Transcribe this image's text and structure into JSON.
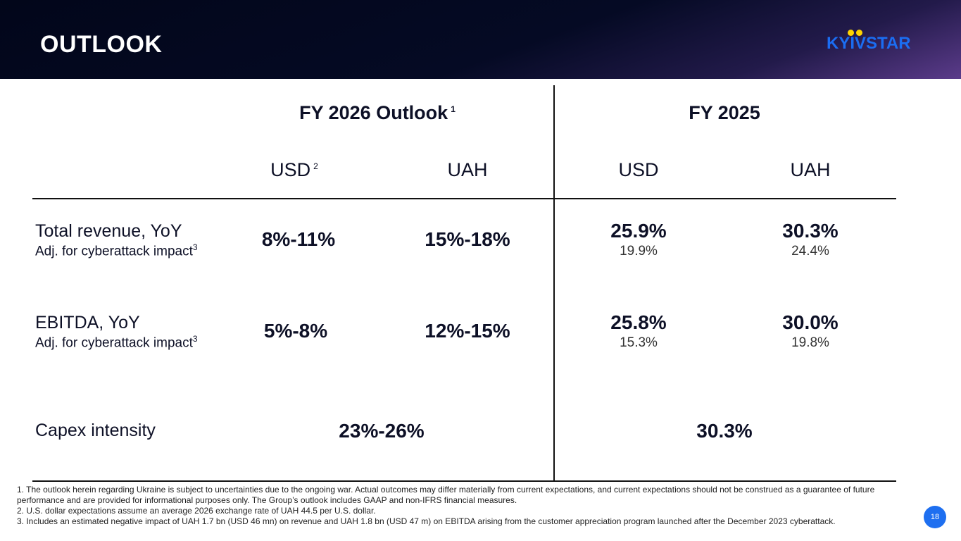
{
  "header": {
    "title": "OUTLOOK",
    "logo_text": "KYIVSTAR"
  },
  "table": {
    "groups": [
      {
        "title": "FY 2026 Outlook",
        "note": "1"
      },
      {
        "title": "FY 2025",
        "note": ""
      }
    ],
    "columns": [
      {
        "label": "USD",
        "note": "2"
      },
      {
        "label": "UAH",
        "note": ""
      },
      {
        "label": "USD",
        "note": ""
      },
      {
        "label": "UAH",
        "note": ""
      }
    ],
    "rows": [
      {
        "label": "Total revenue, YoY",
        "sublabel": "Adj. for cyberattack impact",
        "sublabel_note": "3",
        "outlook_usd": "8%-11%",
        "outlook_uah": "15%-18%",
        "fy2025_usd": "25.9%",
        "fy2025_usd_adj": "19.9%",
        "fy2025_uah": "30.3%",
        "fy2025_uah_adj": "24.4%"
      },
      {
        "label": "EBITDA, YoY",
        "sublabel": "Adj. for cyberattack impact",
        "sublabel_note": "3",
        "outlook_usd": "5%-8%",
        "outlook_uah": "12%-15%",
        "fy2025_usd": "25.8%",
        "fy2025_usd_adj": "15.3%",
        "fy2025_uah": "30.0%",
        "fy2025_uah_adj": "19.8%"
      },
      {
        "label": "Capex intensity",
        "outlook": "23%-26%",
        "fy2025": "30.3%"
      }
    ]
  },
  "footnotes": [
    "1. The outlook herein regarding Ukraine is subject to uncertainties due to the ongoing war. Actual outcomes may differ materially from current expectations, and current expectations should not be construed as a guarantee of future performance and are provided for informational purposes only. The Group’s outlook includes GAAP and non-IFRS financial measures.",
    "2. U.S. dollar expectations assume an average 2026 exchange rate of UAH 44.5 per U.S. dollar.",
    "3. Includes an estimated negative impact of UAH 1.7 bn (USD 46 mn) on revenue and UAH 1.8 bn (USD 47 m) on EBITDA arising from the customer appreciation program launched after the December 2023 cyberattack."
  ],
  "page_number": "18",
  "colors": {
    "header_bg": "#02061a",
    "logo_blue": "#1b6df2",
    "logo_yellow": "#ffd400",
    "page_badge": "#1e6ff0"
  }
}
